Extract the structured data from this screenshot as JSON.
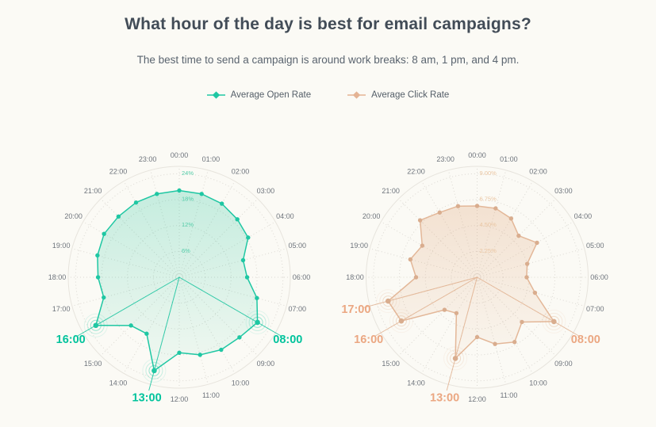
{
  "page": {
    "title": "What hour of the day is best for email campaigns?",
    "subtitle": "The best time to send a campaign is around work breaks: 8 am, 1 pm, and 4 pm.",
    "background_color": "#fbfaf5",
    "grid_color": "#dbd8d2",
    "outer_ring_color": "#e7e4dd",
    "hour_label_color": "#6e747c"
  },
  "legend": {
    "items": [
      {
        "label": "Average Open Rate",
        "color": "#1fc7a3"
      },
      {
        "label": "Average Click Rate",
        "color": "#e4b394"
      }
    ]
  },
  "chart_data": [
    {
      "type": "radar",
      "series_name": "Average Open Rate",
      "units": "%",
      "legend_position": "top",
      "grid": "dotted polar rings and spokes, solid outer circle",
      "categories": [
        "00:00",
        "01:00",
        "02:00",
        "03:00",
        "04:00",
        "05:00",
        "06:00",
        "07:00",
        "08:00",
        "09:00",
        "10:00",
        "11:00",
        "12:00",
        "13:00",
        "14:00",
        "15:00",
        "16:00",
        "17:00",
        "18:00",
        "19:00",
        "20:00",
        "21:00",
        "22:00",
        "23:00"
      ],
      "values": [
        20.1,
        20.0,
        19.7,
        19.0,
        18.4,
        15.3,
        15.7,
        18.6,
        20.9,
        19.7,
        19.4,
        18.6,
        17.5,
        22.4,
        15.1,
        15.8,
        22.3,
        18.1,
        18.8,
        19.6,
        20.1,
        19.9,
        20.0,
        20.0
      ],
      "rings": [
        {
          "value": 6,
          "label": "6%"
        },
        {
          "value": 12,
          "label": "12%"
        },
        {
          "value": 18,
          "label": "18%"
        },
        {
          "value": 24,
          "label": "24%"
        }
      ],
      "axis_max": 25.7,
      "highlighted": [
        "08:00",
        "13:00",
        "16:00"
      ],
      "colors": {
        "line": "#1fc7a3",
        "marker": "#1fc7a3",
        "fill": "#2cc69f",
        "fill_opacity_top": 0.26,
        "fill_opacity_bottom": 0.05,
        "tick_label": "#55cdaa",
        "highlight_label": "#00c39c"
      }
    },
    {
      "type": "radar",
      "series_name": "Average Click Rate",
      "units": "%",
      "legend_position": "top",
      "grid": "dotted polar rings and spokes, solid outer circle",
      "categories": [
        "00:00",
        "01:00",
        "02:00",
        "03:00",
        "04:00",
        "05:00",
        "06:00",
        "07:00",
        "08:00",
        "09:00",
        "10:00",
        "11:00",
        "12:00",
        "13:00",
        "14:00",
        "15:00",
        "16:00",
        "17:00",
        "18:00",
        "19:00",
        "20:00",
        "21:00",
        "22:00",
        "23:00"
      ],
      "values": [
        6.2,
        6.2,
        5.9,
        5.1,
        6.0,
        4.5,
        4.3,
        5.2,
        7.7,
        5.5,
        6.5,
        6.0,
        5.2,
        7.3,
        3.6,
        4.0,
        7.6,
        8.0,
        5.3,
        6.0,
        5.5,
        7.0,
        6.5,
        6.4
      ],
      "rings": [
        {
          "value": 2.25,
          "label": "2.25%"
        },
        {
          "value": 4.5,
          "label": "4.50%"
        },
        {
          "value": 6.75,
          "label": "6.75%"
        },
        {
          "value": 9,
          "label": "9.00%"
        }
      ],
      "axis_max": 9.64,
      "highlighted": [
        "08:00",
        "13:00",
        "16:00",
        "17:00"
      ],
      "colors": {
        "line": "#e3b798",
        "marker": "#d9ad8e",
        "fill": "#e0a87d",
        "fill_opacity_top": 0.3,
        "fill_opacity_bottom": 0.06,
        "tick_label": "#eac6a3",
        "highlight_label": "#eba782"
      }
    }
  ]
}
